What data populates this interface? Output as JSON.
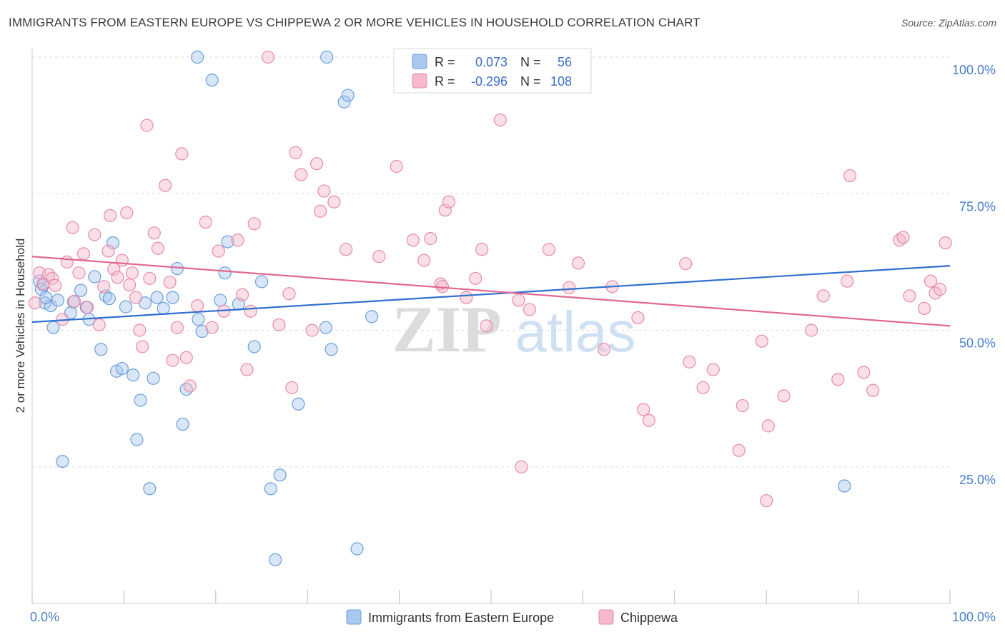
{
  "header": {
    "title": "IMMIGRANTS FROM EASTERN EUROPE VS CHIPPEWA 2 OR MORE VEHICLES IN HOUSEHOLD CORRELATION CHART",
    "source": "Source: ZipAtlas.com"
  },
  "watermark": {
    "zip": "ZIP",
    "atlas": "atlas"
  },
  "stats": {
    "r_label": "R =",
    "n_label": "N =",
    "rows": [
      {
        "r": "0.073",
        "n": "56",
        "color": "#a8c8f0"
      },
      {
        "r": "-0.296",
        "n": "108",
        "color": "#f5b8cc"
      }
    ]
  },
  "chart_data": {
    "type": "scatter",
    "title": "IMMIGRANTS FROM EASTERN EUROPE VS CHIPPEWA 2 OR MORE VEHICLES IN HOUSEHOLD CORRELATION CHART",
    "xlabel": "",
    "ylabel": "2 or more Vehicles in Household",
    "xlim": [
      0,
      100
    ],
    "ylim": [
      0,
      100
    ],
    "x_tick_labels": [
      "0.0%",
      "100.0%"
    ],
    "y_tick_labels": [
      "25.0%",
      "50.0%",
      "75.0%",
      "100.0%"
    ],
    "y_ticks": [
      25,
      50,
      75,
      100
    ],
    "grid": true,
    "legend_position": "bottom-center",
    "series": [
      {
        "name": "Immigrants from Eastern Europe",
        "color": "#a8c8f0",
        "stroke": "#6a9edc",
        "trend": {
          "x": [
            0,
            100
          ],
          "y": [
            51.5,
            61.8
          ],
          "color": "#2f6fce"
        },
        "points": [
          [
            0.8,
            59.0
          ],
          [
            1.2,
            58.3
          ],
          [
            1.4,
            55.0
          ],
          [
            2.0,
            54.5
          ],
          [
            2.3,
            50.5
          ],
          [
            2.8,
            55.5
          ],
          [
            3.3,
            26.0
          ],
          [
            4.2,
            53.2
          ],
          [
            4.5,
            55.2
          ],
          [
            5.3,
            57.3
          ],
          [
            5.9,
            54.2
          ],
          [
            6.2,
            52.0
          ],
          [
            6.8,
            59.8
          ],
          [
            7.5,
            46.5
          ],
          [
            8.0,
            56.3
          ],
          [
            8.4,
            55.8
          ],
          [
            8.8,
            66.0
          ],
          [
            9.2,
            42.5
          ],
          [
            9.8,
            43.0
          ],
          [
            10.2,
            54.3
          ],
          [
            11.0,
            41.8
          ],
          [
            11.4,
            30.0
          ],
          [
            11.8,
            37.2
          ],
          [
            12.3,
            55.0
          ],
          [
            12.8,
            21.0
          ],
          [
            13.2,
            41.2
          ],
          [
            13.6,
            56.0
          ],
          [
            14.3,
            54.0
          ],
          [
            15.3,
            56.0
          ],
          [
            15.8,
            61.3
          ],
          [
            16.4,
            32.8
          ],
          [
            16.8,
            39.2
          ],
          [
            18.1,
            52.0
          ],
          [
            18.5,
            49.8
          ],
          [
            18.0,
            100
          ],
          [
            19.6,
            95.8
          ],
          [
            20.5,
            55.5
          ],
          [
            21.0,
            60.5
          ],
          [
            21.3,
            66.2
          ],
          [
            22.5,
            54.8
          ],
          [
            24.2,
            47.0
          ],
          [
            25.0,
            58.9
          ],
          [
            26.0,
            21.0
          ],
          [
            26.5,
            8.0
          ],
          [
            27.0,
            23.5
          ],
          [
            29.0,
            36.5
          ],
          [
            32.0,
            50.5
          ],
          [
            32.6,
            46.5
          ],
          [
            32.1,
            100
          ],
          [
            34.0,
            91.8
          ],
          [
            34.4,
            93.0
          ],
          [
            35.4,
            10.0
          ],
          [
            37.0,
            52.5
          ],
          [
            1.0,
            57.5
          ],
          [
            88.5,
            21.5
          ],
          [
            1.5,
            56.0
          ]
        ]
      },
      {
        "name": "Chippewa",
        "color": "#f5b8cc",
        "stroke": "#e88aaa",
        "trend": {
          "x": [
            0,
            100
          ],
          "y": [
            63.5,
            50.8
          ],
          "color": "#e06792"
        },
        "points": [
          [
            0.3,
            55.0
          ],
          [
            0.8,
            60.5
          ],
          [
            1.2,
            58.5
          ],
          [
            1.8,
            60.2
          ],
          [
            2.2,
            59.5
          ],
          [
            2.5,
            58.2
          ],
          [
            3.3,
            52.0
          ],
          [
            3.8,
            62.5
          ],
          [
            4.4,
            68.8
          ],
          [
            4.6,
            55.3
          ],
          [
            5.1,
            60.5
          ],
          [
            5.6,
            64.0
          ],
          [
            6.0,
            54.2
          ],
          [
            6.8,
            67.5
          ],
          [
            7.3,
            51.0
          ],
          [
            7.8,
            58.0
          ],
          [
            8.3,
            64.5
          ],
          [
            8.5,
            71.0
          ],
          [
            8.9,
            61.2
          ],
          [
            9.3,
            59.7
          ],
          [
            9.8,
            62.8
          ],
          [
            10.3,
            71.5
          ],
          [
            10.6,
            58.3
          ],
          [
            10.9,
            60.5
          ],
          [
            11.3,
            56.0
          ],
          [
            11.7,
            50.0
          ],
          [
            12.0,
            47.0
          ],
          [
            12.5,
            87.5
          ],
          [
            12.8,
            59.5
          ],
          [
            13.3,
            67.8
          ],
          [
            13.7,
            65.0
          ],
          [
            14.5,
            76.5
          ],
          [
            15.0,
            58.8
          ],
          [
            15.3,
            44.5
          ],
          [
            15.8,
            50.5
          ],
          [
            16.3,
            82.3
          ],
          [
            16.8,
            45.0
          ],
          [
            17.2,
            39.8
          ],
          [
            18.0,
            54.5
          ],
          [
            18.9,
            69.8
          ],
          [
            19.6,
            50.5
          ],
          [
            20.3,
            64.5
          ],
          [
            20.9,
            53.5
          ],
          [
            22.4,
            66.5
          ],
          [
            22.9,
            56.5
          ],
          [
            23.4,
            42.8
          ],
          [
            23.8,
            53.5
          ],
          [
            24.2,
            69.5
          ],
          [
            25.7,
            100
          ],
          [
            26.9,
            51.0
          ],
          [
            28.0,
            56.7
          ],
          [
            28.3,
            39.5
          ],
          [
            28.7,
            82.5
          ],
          [
            29.3,
            78.5
          ],
          [
            30.5,
            50.0
          ],
          [
            31.0,
            80.5
          ],
          [
            31.4,
            71.8
          ],
          [
            31.8,
            75.5
          ],
          [
            32.9,
            73.5
          ],
          [
            34.2,
            64.8
          ],
          [
            37.8,
            63.5
          ],
          [
            39.7,
            80.0
          ],
          [
            41.5,
            66.5
          ],
          [
            42.7,
            62.8
          ],
          [
            43.4,
            66.8
          ],
          [
            44.5,
            58.5
          ],
          [
            44.7,
            58.0
          ],
          [
            45.0,
            72.0
          ],
          [
            45.4,
            73.5
          ],
          [
            47.3,
            56.0
          ],
          [
            48.3,
            59.5
          ],
          [
            49.0,
            64.8
          ],
          [
            49.5,
            50.8
          ],
          [
            51.0,
            88.5
          ],
          [
            53.0,
            55.5
          ],
          [
            53.3,
            25.0
          ],
          [
            54.2,
            53.8
          ],
          [
            56.3,
            64.8
          ],
          [
            58.5,
            57.8
          ],
          [
            59.5,
            62.3
          ],
          [
            62.3,
            46.5
          ],
          [
            63.2,
            58.0
          ],
          [
            66.0,
            52.3
          ],
          [
            66.6,
            35.5
          ],
          [
            67.2,
            33.5
          ],
          [
            71.2,
            62.2
          ],
          [
            71.6,
            44.2
          ],
          [
            73.1,
            39.5
          ],
          [
            74.2,
            42.8
          ],
          [
            77.4,
            36.2
          ],
          [
            77.0,
            28.0
          ],
          [
            79.5,
            48.0
          ],
          [
            80.0,
            18.8
          ],
          [
            80.2,
            32.5
          ],
          [
            81.9,
            38.0
          ],
          [
            84.9,
            50.0
          ],
          [
            86.2,
            56.3
          ],
          [
            87.8,
            41.0
          ],
          [
            88.8,
            59.0
          ],
          [
            89.1,
            78.3
          ],
          [
            90.6,
            42.3
          ],
          [
            91.6,
            39.0
          ],
          [
            94.5,
            66.5
          ],
          [
            94.9,
            67.0
          ],
          [
            95.6,
            56.3
          ],
          [
            97.2,
            54.0
          ],
          [
            97.9,
            59.0
          ],
          [
            98.4,
            56.8
          ],
          [
            98.9,
            57.5
          ],
          [
            99.5,
            66.0
          ]
        ]
      }
    ]
  },
  "legend": {
    "items": [
      {
        "label": "Immigrants from Eastern Europe",
        "color": "#a8c8f0",
        "stroke": "#6a9edc"
      },
      {
        "label": "Chippewa",
        "color": "#f5b8cc",
        "stroke": "#e88aaa"
      }
    ]
  }
}
